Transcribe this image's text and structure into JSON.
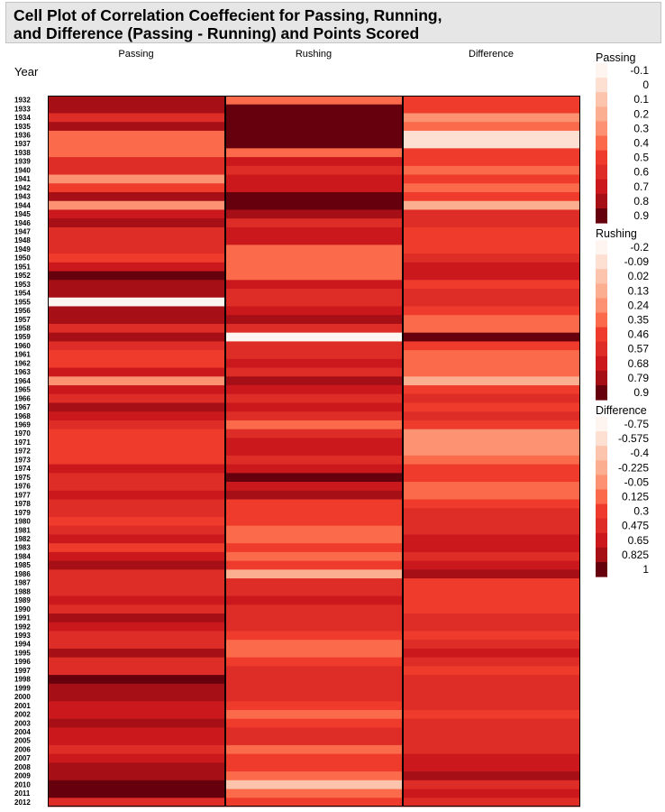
{
  "title_lines": [
    "Cell Plot of Correlation Coeffecient for Passing, Running,",
    "and Difference (Passing - Running) and Points Scored"
  ],
  "chart_data": {
    "type": "heatmap",
    "row_label": "Year",
    "columns": [
      "Passing",
      "Rushing",
      "Difference"
    ],
    "years": [
      1932,
      1933,
      1934,
      1935,
      1936,
      1937,
      1938,
      1939,
      1940,
      1941,
      1942,
      1943,
      1944,
      1945,
      1946,
      1947,
      1948,
      1949,
      1950,
      1951,
      1952,
      1953,
      1954,
      1955,
      1956,
      1957,
      1958,
      1959,
      1960,
      1961,
      1962,
      1963,
      1964,
      1965,
      1966,
      1967,
      1968,
      1969,
      1970,
      1971,
      1972,
      1973,
      1974,
      1975,
      1976,
      1977,
      1978,
      1979,
      1980,
      1981,
      1982,
      1983,
      1984,
      1985,
      1986,
      1987,
      1988,
      1989,
      1990,
      1991,
      1992,
      1993,
      1994,
      1995,
      1996,
      1997,
      1998,
      1999,
      2000,
      2001,
      2002,
      2003,
      2004,
      2005,
      2006,
      2007,
      2008,
      2009,
      2010,
      2011,
      2012
    ],
    "passing": [
      0.75,
      0.75,
      0.55,
      0.75,
      0.35,
      0.35,
      0.35,
      0.55,
      0.55,
      0.25,
      0.45,
      0.75,
      0.25,
      0.65,
      0.75,
      0.55,
      0.55,
      0.55,
      0.5,
      0.65,
      0.9,
      0.75,
      0.75,
      -0.1,
      0.75,
      0.75,
      0.55,
      0.75,
      0.55,
      0.45,
      0.45,
      0.65,
      0.25,
      0.65,
      0.55,
      0.75,
      0.65,
      0.55,
      0.45,
      0.45,
      0.45,
      0.45,
      0.65,
      0.55,
      0.55,
      0.65,
      0.55,
      0.55,
      0.45,
      0.55,
      0.65,
      0.45,
      0.65,
      0.75,
      0.55,
      0.55,
      0.55,
      0.65,
      0.55,
      0.75,
      0.65,
      0.55,
      0.55,
      0.75,
      0.55,
      0.55,
      0.85,
      0.75,
      0.75,
      0.65,
      0.65,
      0.75,
      0.65,
      0.65,
      0.55,
      0.65,
      0.75,
      0.75,
      0.85,
      0.85,
      0.55
    ],
    "rushing": [
      0.35,
      0.9,
      0.85,
      0.9,
      0.9,
      0.9,
      0.35,
      0.7,
      0.55,
      0.7,
      0.7,
      0.9,
      0.9,
      0.8,
      0.55,
      0.7,
      0.7,
      0.35,
      0.35,
      0.35,
      0.35,
      0.7,
      0.55,
      0.55,
      0.7,
      0.8,
      0.55,
      -0.2,
      0.55,
      0.55,
      0.7,
      0.55,
      0.8,
      0.7,
      0.55,
      0.7,
      0.55,
      0.35,
      0.55,
      0.7,
      0.7,
      0.55,
      0.7,
      0.9,
      0.7,
      0.8,
      0.45,
      0.45,
      0.45,
      0.35,
      0.35,
      0.45,
      0.35,
      0.45,
      0.1,
      0.55,
      0.55,
      0.7,
      0.55,
      0.55,
      0.55,
      0.45,
      0.35,
      0.35,
      0.45,
      0.55,
      0.55,
      0.55,
      0.55,
      0.45,
      0.35,
      0.45,
      0.55,
      0.55,
      0.35,
      0.45,
      0.45,
      0.35,
      0.05,
      0.35,
      0.45
    ],
    "difference": [
      0.3,
      0.3,
      0.0,
      0.125,
      -0.5,
      -0.5,
      0.3,
      0.3,
      0.2,
      0.3,
      0.125,
      0.3,
      -0.3,
      0.475,
      0.475,
      0.3,
      0.3,
      0.3,
      0.475,
      0.65,
      0.65,
      0.3,
      0.475,
      0.475,
      0.3,
      0.125,
      0.125,
      1.0,
      0.3,
      0.125,
      0.125,
      0.125,
      -0.2,
      0.3,
      0.475,
      0.3,
      0.475,
      0.3,
      0.0,
      -0.1,
      0.0,
      0.125,
      0.3,
      0.3,
      0.125,
      0.125,
      0.3,
      0.475,
      0.475,
      0.475,
      0.65,
      0.65,
      0.475,
      0.65,
      0.825,
      0.3,
      0.3,
      0.3,
      0.3,
      0.475,
      0.475,
      0.3,
      0.475,
      0.65,
      0.475,
      0.3,
      0.475,
      0.475,
      0.475,
      0.475,
      0.3,
      0.475,
      0.475,
      0.475,
      0.475,
      0.65,
      0.65,
      0.825,
      0.475,
      0.65,
      0.475
    ]
  },
  "legends": [
    {
      "title": "Passing",
      "labels": [
        "-0.1",
        "0",
        "0.1",
        "0.2",
        "0.3",
        "0.4",
        "0.5",
        "0.6",
        "0.7",
        "0.8",
        "0.9"
      ]
    },
    {
      "title": "Rushing",
      "labels": [
        "-0.2",
        "-0.09",
        "0.02",
        "0.13",
        "0.24",
        "0.35",
        "0.46",
        "0.57",
        "0.68",
        "0.79",
        "0.9"
      ]
    },
    {
      "title": "Difference",
      "labels": [
        "-0.75",
        "-0.575",
        "-0.4",
        "-0.225",
        "-0.05",
        "0.125",
        "0.3",
        "0.475",
        "0.65",
        "0.825",
        "1"
      ]
    }
  ],
  "color_ramp": [
    "#fff5f0",
    "#fee0d2",
    "#fcc4ad",
    "#fcae91",
    "#fc9272",
    "#fb6a4a",
    "#ef3b2c",
    "#de2d26",
    "#cb181d",
    "#a50f15",
    "#67000d"
  ]
}
